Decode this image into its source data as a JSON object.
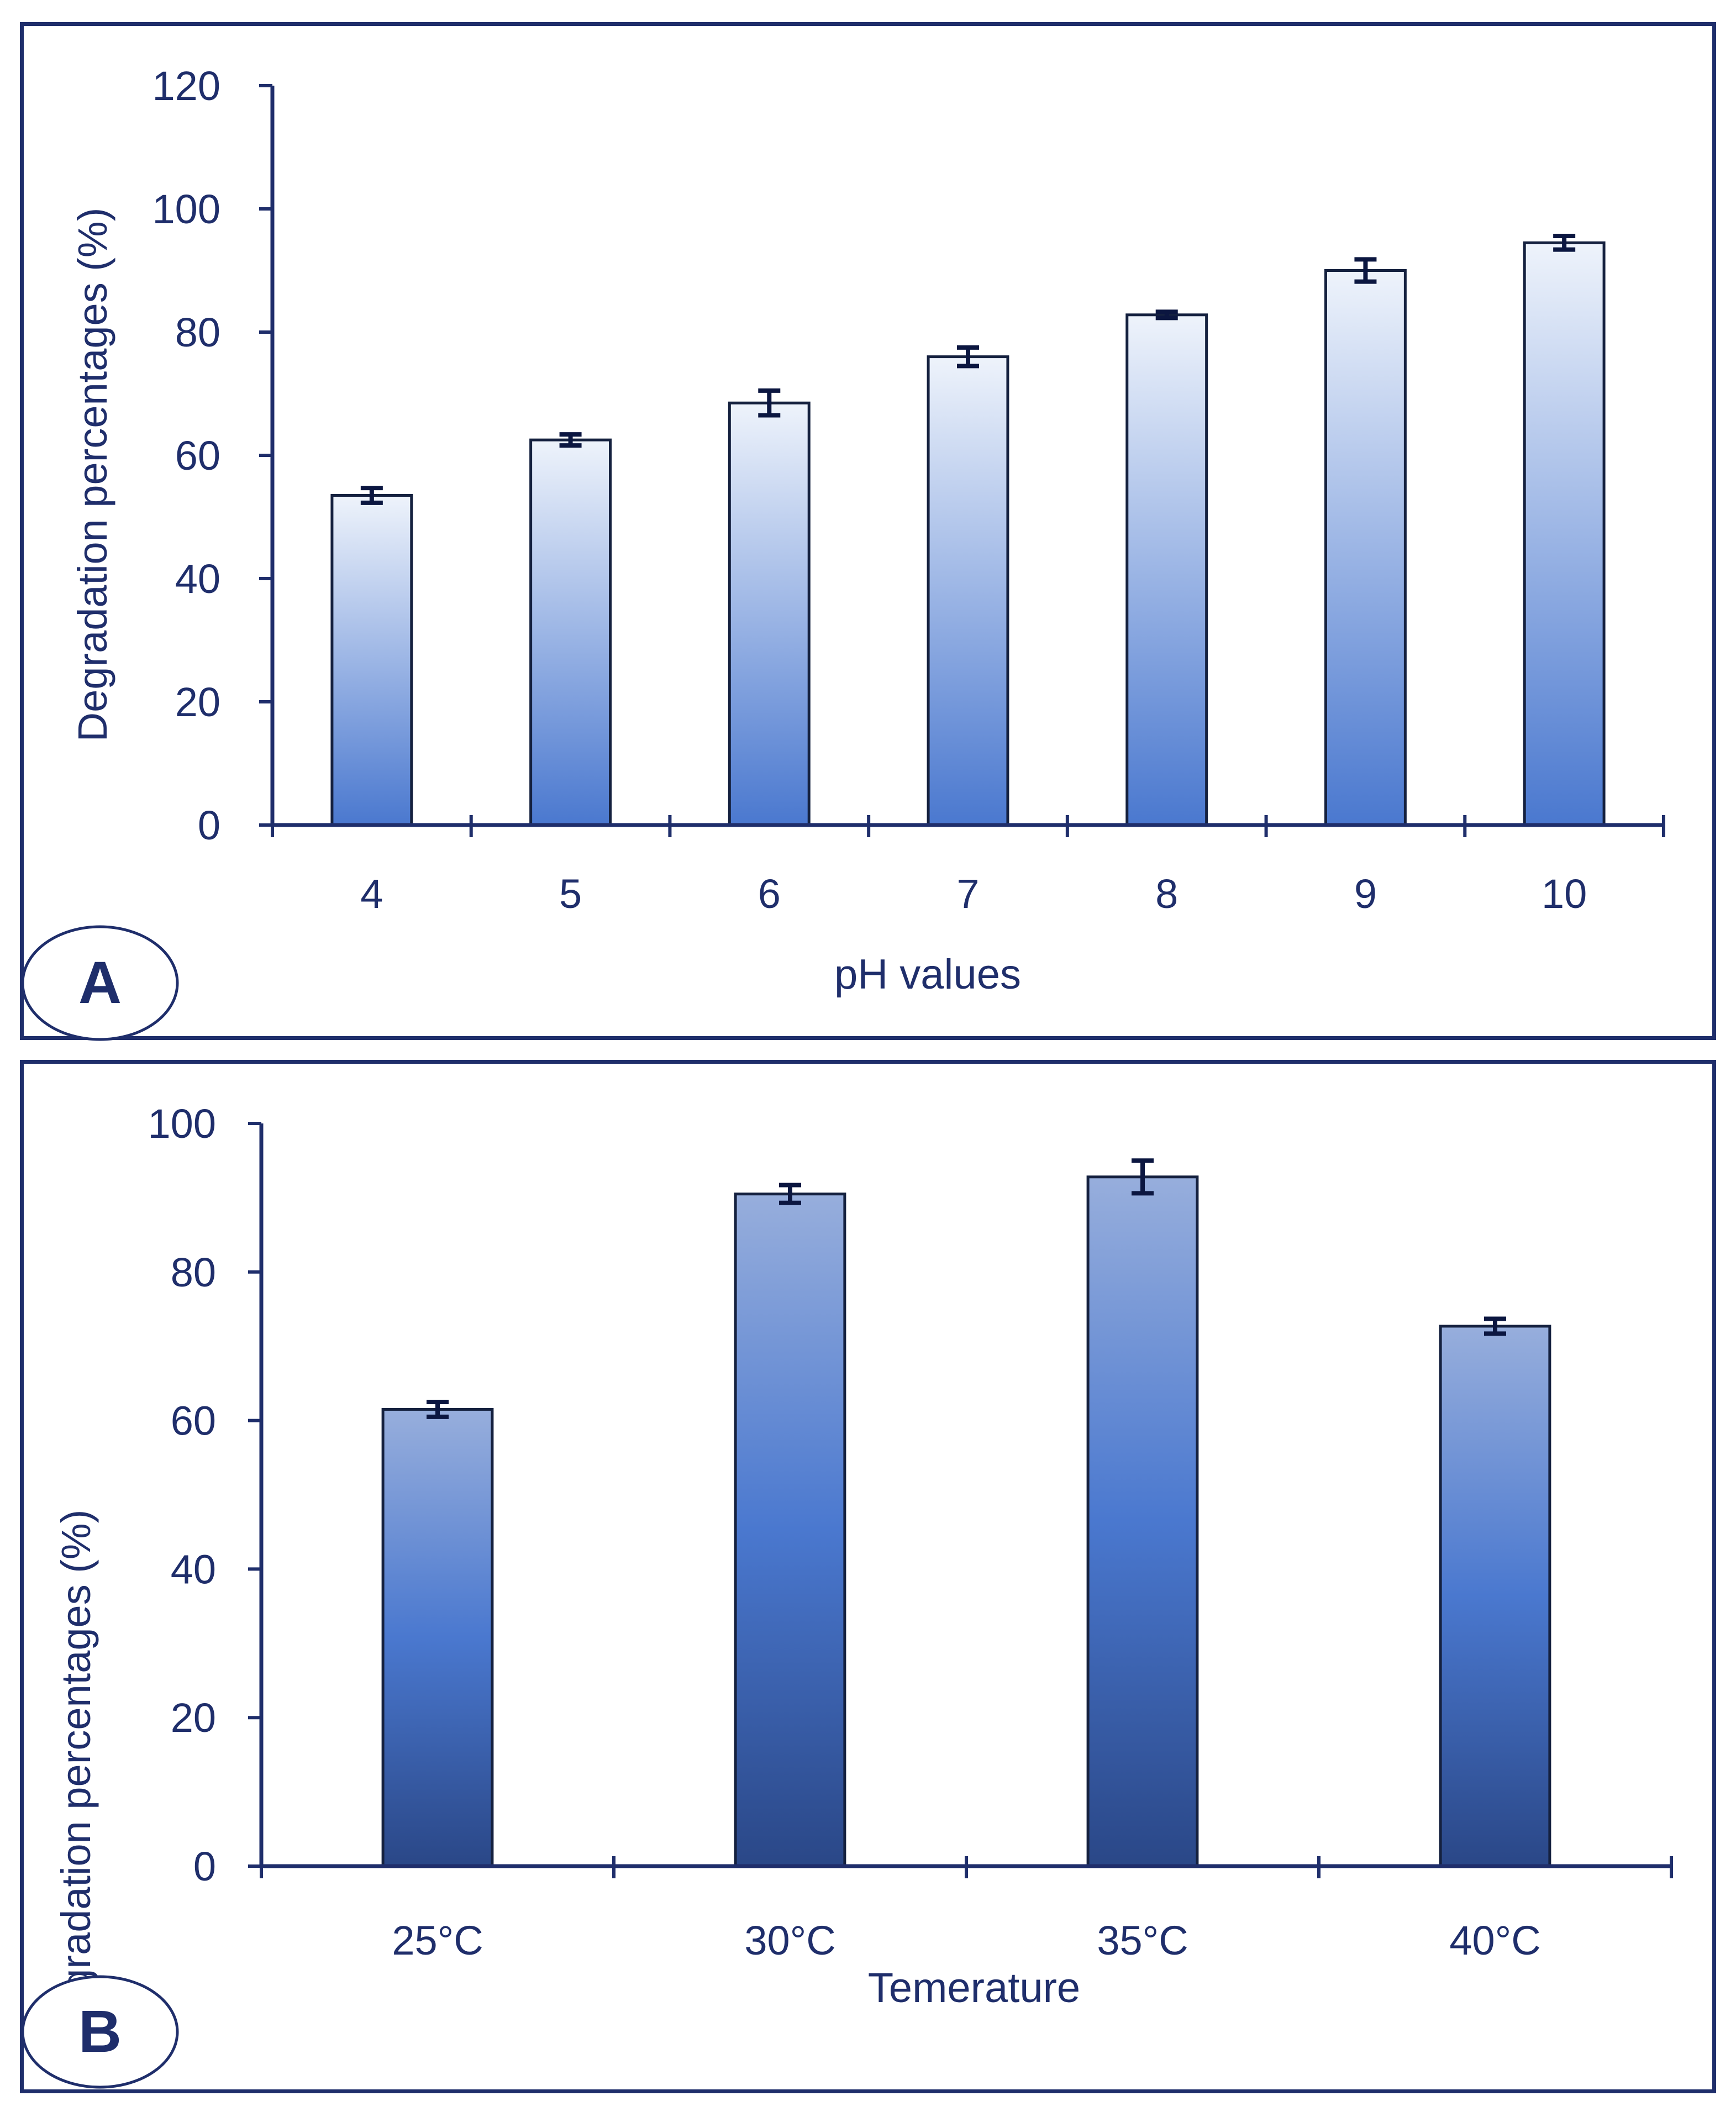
{
  "colors": {
    "ink": "#1f2e6b",
    "bar_light": "#e6edf9",
    "bar_mid": "#4a78cf",
    "bar_dark": "#2a4787",
    "bar_stroke": "#15213f"
  },
  "chart_data": [
    {
      "panel_label": "A",
      "type": "bar",
      "title": "",
      "xlabel": "pH values",
      "ylabel": "Degradation percentages (%)",
      "categories": [
        "4",
        "5",
        "6",
        "7",
        "8",
        "9",
        "10"
      ],
      "values": [
        53.5,
        62.5,
        68.5,
        76.0,
        82.8,
        90.0,
        94.5
      ],
      "errors": [
        1.2,
        0.9,
        2.0,
        1.5,
        0.5,
        1.8,
        1.1
      ],
      "ylim": [
        0,
        120
      ],
      "yticks": [
        "0",
        "20",
        "40",
        "60",
        "80",
        "100",
        "120"
      ],
      "grid": false,
      "legend": "none"
    },
    {
      "panel_label": "B",
      "type": "bar",
      "title": "",
      "xlabel": "Temerature",
      "ylabel": "Degradation percentages (%)",
      "categories": [
        "25°C",
        "30°C",
        "35°C",
        "40°C"
      ],
      "values": [
        61.5,
        90.5,
        92.8,
        72.7
      ],
      "errors": [
        1.0,
        1.2,
        2.2,
        1.0
      ],
      "ylim": [
        0,
        100
      ],
      "yticks": [
        "0",
        "20",
        "40",
        "60",
        "80",
        "100"
      ],
      "grid": false,
      "legend": "none"
    }
  ]
}
